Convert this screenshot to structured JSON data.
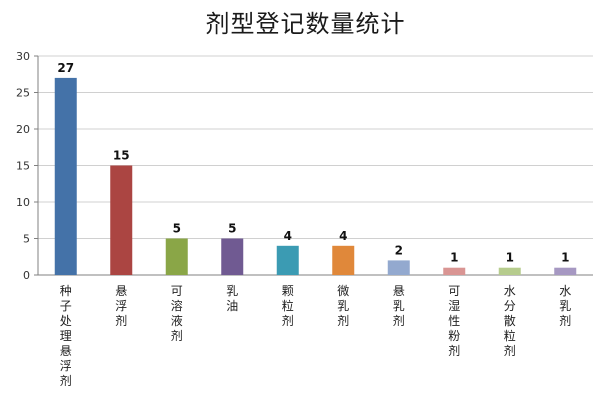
{
  "chart_data": {
    "type": "bar",
    "title": "剂型登记数量统计",
    "xlabel": "",
    "ylabel": "",
    "ylim": [
      0,
      30
    ],
    "yticks": [
      0,
      5,
      10,
      15,
      20,
      25,
      30
    ],
    "grid": true,
    "legend": "none",
    "categories": [
      "种子处理悬浮剂",
      "悬浮剂",
      "可溶液剂",
      "乳油",
      "颗粒剂",
      "微乳剂",
      "悬乳剂",
      "可湿性粉剂",
      "水分散粒剂",
      "水乳剂"
    ],
    "values": [
      27,
      15,
      5,
      5,
      4,
      4,
      2,
      1,
      1,
      1
    ],
    "colors": [
      "#4472a8",
      "#ab4542",
      "#8aa647",
      "#705a92",
      "#3b9bb3",
      "#e0883a",
      "#93a9cf",
      "#d99593",
      "#b6cc8d",
      "#a698c2"
    ]
  }
}
